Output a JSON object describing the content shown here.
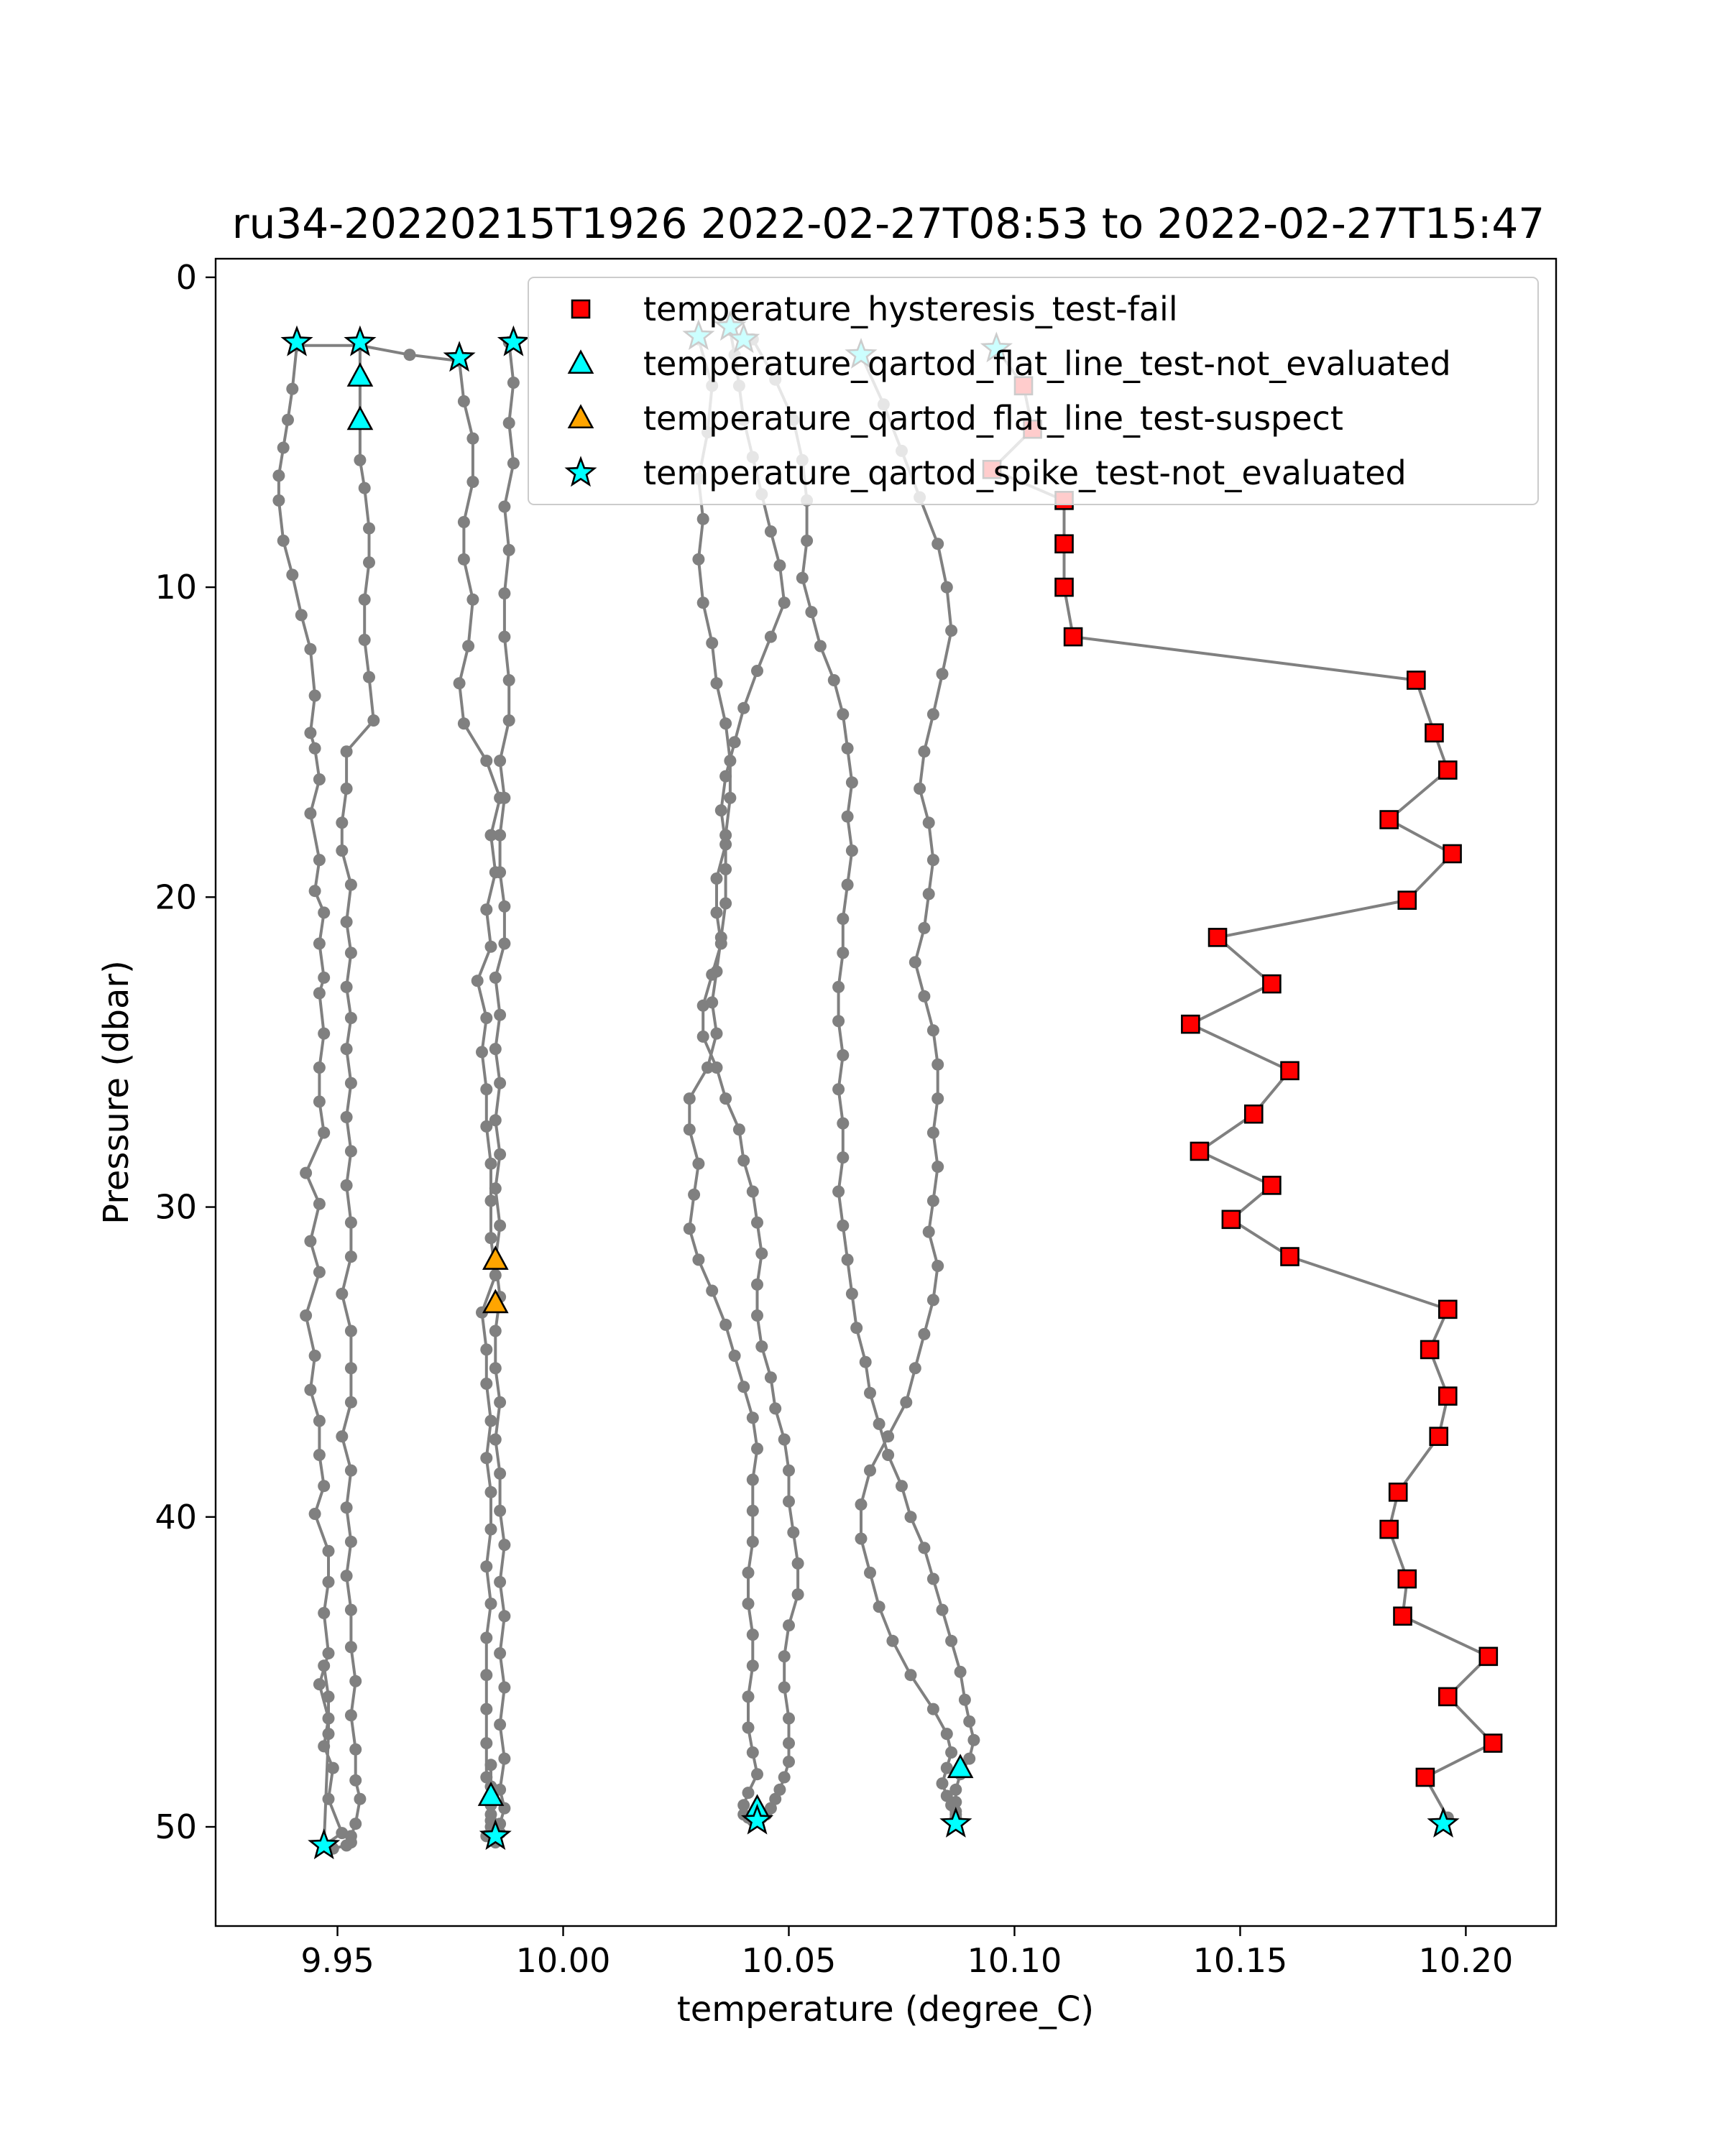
{
  "chart_data": {
    "type": "scatter",
    "title": "ru34-20220215T1926 2022-02-27T08:53 to 2022-02-27T15:47",
    "xlabel": "temperature (degree_C)",
    "ylabel": "Pressure (dbar)",
    "xlim": [
      9.923,
      10.22
    ],
    "ylim": [
      53.2,
      -0.6
    ],
    "y_inverted": true,
    "xticks": [
      9.95,
      10.0,
      10.05,
      10.1,
      10.15,
      10.2
    ],
    "xtick_labels": [
      "9.95",
      "10.00",
      "10.05",
      "10.10",
      "10.15",
      "10.20"
    ],
    "yticks": [
      0,
      10,
      20,
      30,
      40,
      50
    ],
    "ytick_labels": [
      "0",
      "10",
      "20",
      "30",
      "40",
      "50"
    ],
    "grid": false,
    "legend_placement": "top-right",
    "profile_line_color": "#808080",
    "profiles": [
      {
        "x": [
          9.941,
          9.94,
          9.939,
          9.938,
          9.937,
          9.937,
          9.938,
          9.94,
          9.942,
          9.944,
          9.945,
          9.944,
          9.945,
          9.946,
          9.944,
          9.946,
          9.945,
          9.947,
          9.946,
          9.947,
          9.946,
          9.947,
          9.946,
          9.946,
          9.947,
          9.943,
          9.946,
          9.944,
          9.946,
          9.943,
          9.945,
          9.944,
          9.946,
          9.946,
          9.947,
          9.945,
          9.948,
          9.948,
          9.947,
          9.948,
          9.946,
          9.948,
          9.947,
          9.949,
          9.948,
          9.951,
          9.947,
          9.948,
          9.948,
          9.947
        ],
        "y": [
          2.2,
          3.6,
          4.6,
          5.5,
          6.4,
          7.2,
          8.5,
          9.6,
          10.9,
          12.0,
          13.5,
          14.7,
          15.2,
          16.2,
          17.3,
          18.8,
          19.8,
          20.5,
          21.5,
          22.6,
          23.1,
          24.4,
          25.5,
          26.6,
          27.6,
          28.9,
          29.9,
          31.1,
          32.1,
          33.5,
          34.8,
          35.9,
          36.9,
          38.0,
          39.0,
          39.9,
          41.1,
          42.1,
          43.1,
          44.4,
          45.4,
          46.5,
          47.4,
          48.1,
          49.1,
          50.2,
          50.6,
          47.0,
          45.8,
          44.8
        ]
      },
      {
        "x": [
          9.955,
          9.955,
          9.955,
          9.955,
          9.956,
          9.957,
          9.957,
          9.956,
          9.956,
          9.957,
          9.958,
          9.952,
          9.952,
          9.951,
          9.951,
          9.953,
          9.952,
          9.953,
          9.952,
          9.953,
          9.952,
          9.953,
          9.952,
          9.953,
          9.952,
          9.953,
          9.953,
          9.951,
          9.953,
          9.953,
          9.953,
          9.951,
          9.953,
          9.952,
          9.953,
          9.952,
          9.953,
          9.953,
          9.954,
          9.953,
          9.954,
          9.954,
          9.955,
          9.954,
          9.953,
          9.953,
          9.952,
          9.949
        ],
        "y": [
          2.1,
          3.2,
          4.6,
          5.9,
          6.8,
          8.1,
          9.2,
          10.4,
          11.7,
          12.9,
          14.3,
          15.3,
          16.5,
          17.6,
          18.5,
          19.6,
          20.8,
          21.8,
          22.9,
          23.9,
          24.9,
          26.0,
          27.1,
          28.2,
          29.3,
          30.5,
          31.6,
          32.8,
          34.0,
          35.2,
          36.3,
          37.4,
          38.5,
          39.7,
          40.8,
          41.9,
          43.0,
          44.2,
          45.3,
          46.4,
          47.5,
          48.5,
          49.1,
          49.9,
          50.3,
          50.5,
          50.6,
          50.7
        ]
      },
      {
        "x": [
          9.941,
          9.955,
          9.966,
          9.977
        ],
        "y": [
          2.2,
          2.2,
          2.5,
          2.7
        ]
      },
      {
        "x": [
          9.977,
          9.978,
          9.98,
          9.98,
          9.978,
          9.978,
          9.98,
          9.979,
          9.977,
          9.978,
          9.983,
          9.986,
          9.984,
          9.985,
          9.983,
          9.984,
          9.981,
          9.983,
          9.982,
          9.983,
          9.983,
          9.984,
          9.984,
          9.984,
          9.985,
          9.982,
          9.983,
          9.983,
          9.984,
          9.983,
          9.984,
          9.984,
          9.983,
          9.984,
          9.983,
          9.983,
          9.983,
          9.983,
          9.983,
          9.984,
          9.984,
          9.984,
          9.983,
          9.984,
          9.984,
          9.984,
          9.984
        ],
        "y": [
          2.7,
          4.0,
          5.2,
          6.6,
          7.9,
          9.1,
          10.4,
          11.9,
          13.1,
          14.4,
          15.6,
          16.8,
          18.0,
          19.2,
          20.4,
          21.6,
          22.7,
          23.9,
          25.0,
          26.2,
          27.4,
          28.6,
          29.8,
          31.0,
          32.2,
          33.4,
          34.6,
          35.7,
          36.9,
          38.1,
          39.2,
          40.4,
          41.6,
          42.8,
          43.9,
          45.1,
          46.2,
          47.3,
          48.4,
          49.1,
          49.6,
          50.0,
          50.3,
          49.8,
          49.3,
          48.7,
          48.0
        ]
      },
      {
        "x": [
          9.988,
          9.989,
          9.988,
          9.989,
          9.987,
          9.988,
          9.987,
          9.987,
          9.988,
          9.988,
          9.986,
          9.987,
          9.986,
          9.986,
          9.987,
          9.987,
          9.985,
          9.986,
          9.985,
          9.986,
          9.985,
          9.986,
          9.985,
          9.986,
          9.985,
          9.986,
          9.985,
          9.985,
          9.986,
          9.985,
          9.986,
          9.986,
          9.987,
          9.986,
          9.987,
          9.986,
          9.987,
          9.986,
          9.987,
          9.986,
          9.987,
          9.986,
          9.986,
          9.985,
          9.985
        ],
        "y": [
          2.1,
          3.4,
          4.7,
          6.0,
          7.4,
          8.8,
          10.2,
          11.6,
          13.0,
          14.3,
          15.6,
          16.8,
          18.0,
          19.2,
          20.3,
          21.5,
          22.6,
          23.8,
          24.9,
          26.0,
          27.2,
          28.3,
          29.4,
          30.6,
          31.7,
          32.9,
          34.0,
          35.2,
          36.3,
          37.5,
          38.6,
          39.8,
          40.9,
          42.1,
          43.2,
          44.4,
          45.5,
          46.7,
          47.8,
          48.8,
          49.4,
          49.9,
          50.2,
          50.4,
          50.5
        ]
      },
      {
        "x": [
          10.03,
          10.033,
          10.032,
          10.03,
          10.031,
          10.03,
          10.031,
          10.033,
          10.034,
          10.036,
          10.037,
          10.037,
          10.036,
          10.036,
          10.036,
          10.035,
          10.034,
          10.033,
          10.034,
          10.032,
          10.028,
          10.028,
          10.03,
          10.029,
          10.028,
          10.03,
          10.033,
          10.036,
          10.038,
          10.04,
          10.042,
          10.043,
          10.042,
          10.042,
          10.042,
          10.041,
          10.041,
          10.042,
          10.042,
          10.041,
          10.041,
          10.042,
          10.043,
          10.041,
          10.04,
          10.04,
          10.041,
          10.042,
          10.043
        ],
        "y": [
          2.0,
          3.5,
          5.0,
          6.5,
          7.8,
          9.1,
          10.5,
          11.8,
          13.1,
          14.4,
          15.6,
          16.8,
          18.0,
          19.1,
          20.2,
          21.3,
          22.4,
          23.4,
          24.4,
          25.5,
          26.5,
          27.5,
          28.6,
          29.6,
          30.7,
          31.7,
          32.7,
          33.8,
          34.8,
          35.8,
          36.8,
          37.8,
          38.8,
          39.8,
          40.8,
          41.8,
          42.8,
          43.8,
          44.8,
          45.8,
          46.8,
          47.6,
          48.3,
          48.9,
          49.3,
          49.6,
          49.7,
          49.8,
          49.8
        ]
      },
      {
        "x": [
          10.037,
          10.038,
          10.039,
          10.04,
          10.042,
          10.044,
          10.046,
          10.048,
          10.049,
          10.046,
          10.043,
          10.04,
          10.038,
          10.036,
          10.035,
          10.036,
          10.034,
          10.034,
          10.035,
          10.033,
          10.031,
          10.031,
          10.034,
          10.036,
          10.039,
          10.04,
          10.042,
          10.043,
          10.044,
          10.043,
          10.043,
          10.044,
          10.046,
          10.047,
          10.049,
          10.05,
          10.05,
          10.051,
          10.052,
          10.052,
          10.05,
          10.049,
          10.049,
          10.05,
          10.05,
          10.05,
          10.049,
          10.048,
          10.047,
          10.046,
          10.045,
          10.044,
          10.043
        ],
        "y": [
          1.7,
          2.5,
          3.5,
          4.6,
          5.8,
          7.0,
          8.2,
          9.3,
          10.5,
          11.6,
          12.7,
          13.9,
          15.0,
          16.1,
          17.2,
          18.3,
          19.4,
          20.5,
          21.5,
          22.5,
          23.5,
          24.5,
          25.5,
          26.5,
          27.5,
          28.5,
          29.5,
          30.5,
          31.5,
          32.5,
          33.5,
          34.5,
          35.5,
          36.5,
          37.5,
          38.5,
          39.5,
          40.5,
          41.5,
          42.5,
          43.5,
          44.5,
          45.5,
          46.5,
          47.3,
          47.9,
          48.4,
          48.8,
          49.1,
          49.4,
          49.6,
          49.7,
          49.8
        ]
      },
      {
        "x": [
          10.042,
          10.047,
          10.051,
          10.053,
          10.054,
          10.054,
          10.053,
          10.055,
          10.057,
          10.06,
          10.062,
          10.063,
          10.064,
          10.063,
          10.064,
          10.063,
          10.062,
          10.062,
          10.061,
          10.061,
          10.062,
          10.061,
          10.062,
          10.062,
          10.061,
          10.062,
          10.063,
          10.064,
          10.065,
          10.067,
          10.068,
          10.07,
          10.072,
          10.075,
          10.077,
          10.08,
          10.082,
          10.084,
          10.086,
          10.088,
          10.089,
          10.09,
          10.091,
          10.09,
          10.088,
          10.087,
          10.087,
          10.087,
          10.087,
          10.087
        ],
        "y": [
          2.0,
          3.3,
          4.6,
          5.9,
          7.2,
          8.5,
          9.7,
          10.8,
          11.9,
          13.0,
          14.1,
          15.2,
          16.3,
          17.4,
          18.5,
          19.6,
          20.7,
          21.8,
          22.9,
          24.0,
          25.1,
          26.2,
          27.3,
          28.4,
          29.5,
          30.6,
          31.7,
          32.8,
          33.9,
          35.0,
          36.0,
          37.0,
          38.0,
          39.0,
          40.0,
          41.0,
          42.0,
          43.0,
          44.0,
          45.0,
          45.9,
          46.6,
          47.2,
          47.8,
          48.3,
          48.8,
          49.2,
          49.5,
          49.7,
          49.8
        ]
      },
      {
        "x": [
          10.066,
          10.071,
          10.075,
          10.079,
          10.083,
          10.085,
          10.086,
          10.084,
          10.082,
          10.08,
          10.079,
          10.081,
          10.082,
          10.081,
          10.08,
          10.078,
          10.08,
          10.082,
          10.083,
          10.083,
          10.082,
          10.083,
          10.082,
          10.081,
          10.083,
          10.082,
          10.08,
          10.078,
          10.076,
          10.072,
          10.068,
          10.066,
          10.066,
          10.068,
          10.07,
          10.073,
          10.077,
          10.082,
          10.085,
          10.086,
          10.085,
          10.084,
          10.085,
          10.086,
          10.087,
          10.087
        ],
        "y": [
          2.5,
          4.1,
          5.6,
          7.1,
          8.6,
          10.0,
          11.4,
          12.8,
          14.1,
          15.3,
          16.5,
          17.6,
          18.8,
          19.9,
          21.0,
          22.1,
          23.2,
          24.3,
          25.4,
          26.5,
          27.6,
          28.7,
          29.8,
          30.8,
          31.9,
          33.0,
          34.1,
          35.2,
          36.3,
          37.4,
          38.5,
          39.6,
          40.7,
          41.8,
          42.9,
          44.0,
          45.1,
          46.2,
          47.0,
          47.6,
          48.1,
          48.6,
          49.0,
          49.3,
          49.6,
          49.9
        ]
      },
      {
        "x": [
          10.096,
          10.102,
          10.104,
          10.095,
          10.111,
          10.111,
          10.111,
          10.113,
          10.189,
          10.193,
          10.196,
          10.183,
          10.197,
          10.187,
          10.145,
          10.157,
          10.139,
          10.161,
          10.153,
          10.141,
          10.157,
          10.148,
          10.161,
          10.196,
          10.192,
          10.196,
          10.194,
          10.185,
          10.183,
          10.187,
          10.186,
          10.205,
          10.196,
          10.206,
          10.191,
          10.196,
          10.195
        ],
        "y": [
          2.3,
          3.5,
          4.9,
          6.2,
          7.2,
          8.6,
          10.0,
          11.6,
          13.0,
          14.7,
          15.9,
          17.5,
          18.6,
          20.1,
          21.3,
          22.8,
          24.1,
          25.6,
          27.0,
          28.2,
          29.3,
          30.4,
          31.6,
          33.3,
          34.6,
          36.1,
          37.4,
          39.2,
          40.4,
          42.0,
          43.2,
          44.5,
          45.8,
          47.3,
          48.4,
          49.7,
          49.9
        ]
      }
    ],
    "series": [
      {
        "name": "temperature_hysteresis_test-fail",
        "marker": "square",
        "color": "#ff0000",
        "x": [
          10.102,
          10.104,
          10.095,
          10.111,
          10.111,
          10.111,
          10.113,
          10.189,
          10.193,
          10.196,
          10.183,
          10.197,
          10.187,
          10.145,
          10.157,
          10.139,
          10.161,
          10.153,
          10.141,
          10.157,
          10.148,
          10.161,
          10.196,
          10.192,
          10.196,
          10.194,
          10.185,
          10.183,
          10.187,
          10.186,
          10.205,
          10.196,
          10.206,
          10.191
        ],
        "y": [
          3.5,
          4.9,
          6.2,
          7.2,
          8.6,
          10.0,
          11.6,
          13.0,
          14.7,
          15.9,
          17.5,
          18.6,
          20.1,
          21.3,
          22.8,
          24.1,
          25.6,
          27.0,
          28.2,
          29.3,
          30.4,
          31.6,
          33.3,
          34.6,
          36.1,
          37.4,
          39.2,
          40.4,
          42.0,
          43.2,
          44.5,
          45.8,
          47.3,
          48.4
        ]
      },
      {
        "name": "temperature_qartod_flat_line_test-not_evaluated",
        "marker": "triangle",
        "color": "#00ffff",
        "x": [
          9.955,
          9.955,
          9.984,
          10.043,
          10.088
        ],
        "y": [
          3.2,
          4.6,
          49.0,
          49.4,
          48.1
        ]
      },
      {
        "name": "temperature_qartod_flat_line_test-suspect",
        "marker": "triangle",
        "color": "#ffa500",
        "x": [
          9.985,
          9.985
        ],
        "y": [
          31.7,
          33.1
        ]
      },
      {
        "name": "temperature_qartod_spike_test-not_evaluated",
        "marker": "star",
        "color": "#00ffff",
        "x": [
          9.941,
          9.955,
          9.977,
          9.989,
          10.03,
          10.037,
          10.04,
          10.066,
          10.096,
          9.947,
          9.985,
          10.043,
          10.087,
          10.195
        ],
        "y": [
          2.1,
          2.1,
          2.6,
          2.1,
          1.9,
          1.6,
          2.0,
          2.5,
          2.3,
          50.6,
          50.3,
          49.8,
          49.9,
          49.9
        ]
      }
    ]
  }
}
